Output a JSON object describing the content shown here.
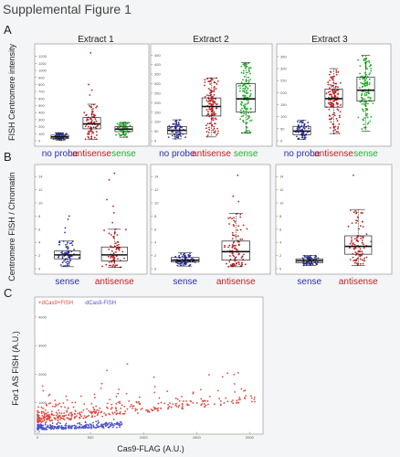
{
  "figure_title": "Supplemental Figure 1",
  "panel_labels": {
    "a": "A",
    "b": "B",
    "c": "C"
  },
  "colors": {
    "blue": "#2b2fa8",
    "red": "#c01f1f",
    "green": "#22b12c"
  },
  "chart_data": [
    {
      "type": "box",
      "id": "A1",
      "title": "Extract 1",
      "ylabel": "FISH Centromere intensity",
      "yticks": [
        "0",
        "100",
        "200",
        "300",
        "400",
        "500",
        "600",
        "700",
        "800",
        "900",
        "1000",
        "1100",
        "1200"
      ],
      "ylim": [
        0,
        1300
      ],
      "categories": [
        "no probe",
        "antisense",
        "sense"
      ],
      "category_colors": [
        "#2b2fa8",
        "#c01f1f",
        "#22b12c"
      ],
      "boxes": [
        {
          "min": 10,
          "q1": 30,
          "median": 55,
          "q3": 80,
          "max": 115,
          "n": 60
        },
        {
          "min": 20,
          "q1": 170,
          "median": 240,
          "q3": 330,
          "max": 520,
          "n": 80
        },
        {
          "min": 50,
          "q1": 130,
          "median": 165,
          "q3": 200,
          "max": 260,
          "n": 80
        }
      ],
      "outliers_high": [
        [
          1,
          650
        ],
        [
          1,
          720
        ],
        [
          1,
          1250
        ],
        [
          1,
          800
        ]
      ]
    },
    {
      "type": "box",
      "id": "A2",
      "title": "Extract 2",
      "yticks": [
        "0",
        "50",
        "100",
        "150",
        "200",
        "250",
        "300",
        "350",
        "400",
        "450"
      ],
      "ylim": [
        0,
        480
      ],
      "categories": [
        "no probe",
        "antisense",
        "sense"
      ],
      "category_colors": [
        "#2b2fa8",
        "#c01f1f",
        "#22b12c"
      ],
      "boxes": [
        {
          "min": 10,
          "q1": 35,
          "median": 55,
          "q3": 75,
          "max": 110,
          "n": 60
        },
        {
          "min": 20,
          "q1": 130,
          "median": 180,
          "q3": 225,
          "max": 330,
          "n": 140
        },
        {
          "min": 40,
          "q1": 150,
          "median": 220,
          "q3": 300,
          "max": 410,
          "n": 140
        }
      ],
      "outliers_high": []
    },
    {
      "type": "box",
      "id": "A3",
      "title": "Extract 3",
      "yticks": [
        "0",
        "50",
        "100",
        "150",
        "200",
        "250",
        "300",
        "350"
      ],
      "ylim": [
        0,
        380
      ],
      "categories": [
        "no probe",
        "antisense",
        "sense"
      ],
      "category_colors": [
        "#2b2fa8",
        "#c01f1f",
        "#22b12c"
      ],
      "boxes": [
        {
          "min": 5,
          "q1": 25,
          "median": 40,
          "q3": 60,
          "max": 85,
          "n": 60
        },
        {
          "min": 30,
          "q1": 140,
          "median": 175,
          "q3": 215,
          "max": 300,
          "n": 140
        },
        {
          "min": 40,
          "q1": 165,
          "median": 210,
          "q3": 265,
          "max": 355,
          "n": 140
        }
      ],
      "outliers_high": []
    },
    {
      "type": "box",
      "id": "B1",
      "ylabel": "Centromere FISH / Chromatin",
      "yticks": [
        "0",
        "2",
        "4",
        "6",
        "8",
        "10",
        "12",
        "14"
      ],
      "ylim": [
        0,
        15
      ],
      "categories": [
        "sense",
        "antisense"
      ],
      "category_colors": [
        "#2b2fa8",
        "#c01f1f"
      ],
      "boxes": [
        {
          "min": 0.3,
          "q1": 1.5,
          "median": 2.1,
          "q3": 2.7,
          "max": 4.2,
          "n": 70
        },
        {
          "min": 0.2,
          "q1": 1.2,
          "median": 2.1,
          "q3": 3.3,
          "max": 6.0,
          "n": 70
        }
      ],
      "outliers_high": [
        [
          0,
          5.5
        ],
        [
          0,
          6.2
        ],
        [
          0,
          7.5
        ],
        [
          0,
          8.0
        ],
        [
          1,
          7.0
        ],
        [
          1,
          8.5
        ],
        [
          1,
          10.5
        ],
        [
          1,
          13.5
        ],
        [
          1,
          14.5
        ],
        [
          1,
          9.5
        ]
      ]
    },
    {
      "type": "box",
      "id": "B2",
      "yticks": [
        "0",
        "2",
        "4",
        "6",
        "8",
        "10",
        "12",
        "14"
      ],
      "ylim": [
        0,
        15
      ],
      "categories": [
        "sense",
        "antisense"
      ],
      "category_colors": [
        "#2b2fa8",
        "#c01f1f"
      ],
      "boxes": [
        {
          "min": 0.4,
          "q1": 1.0,
          "median": 1.3,
          "q3": 1.7,
          "max": 2.4,
          "n": 80
        },
        {
          "min": 0.3,
          "q1": 1.3,
          "median": 2.6,
          "q3": 4.2,
          "max": 8.4,
          "n": 100
        }
      ],
      "outliers_high": [
        [
          1,
          10.2
        ],
        [
          1,
          11.0
        ],
        [
          1,
          14.2
        ]
      ]
    },
    {
      "type": "box",
      "id": "B3",
      "yticks": [
        "0",
        "2",
        "4",
        "6",
        "8",
        "10",
        "12",
        "14"
      ],
      "ylim": [
        0,
        15
      ],
      "categories": [
        "sense",
        "antisense"
      ],
      "category_colors": [
        "#2b2fa8",
        "#c01f1f"
      ],
      "boxes": [
        {
          "min": 0.5,
          "q1": 0.9,
          "median": 1.2,
          "q3": 1.5,
          "max": 2.0,
          "n": 70
        },
        {
          "min": 0.5,
          "q1": 2.2,
          "median": 3.4,
          "q3": 5.0,
          "max": 9.0,
          "n": 100
        }
      ],
      "outliers_high": [
        [
          1,
          14.2
        ]
      ]
    },
    {
      "type": "scatter",
      "id": "C",
      "xlabel": "Cas9-FLAG (A.U.)",
      "ylabel": "For1 AS FISH (A.U.)",
      "xticks": [
        "0",
        "500",
        "1000",
        "1500",
        "2000"
      ],
      "xlim": [
        0,
        2100
      ],
      "yticks": [
        "0",
        "1000",
        "2000",
        "3000",
        "4000"
      ],
      "ylim": [
        0,
        4600
      ],
      "legend": [
        {
          "label": "+dCas9+FISH",
          "color": "#e0483e"
        },
        {
          "label": "-dCas9-FISH",
          "color": "#4d52c9"
        }
      ],
      "series": [
        {
          "name": "+dCas9+FISH",
          "color": "#e0483e",
          "n": 420,
          "xrange": [
            0,
            2050
          ],
          "ymean": 1100
        },
        {
          "name": "-dCas9-FISH",
          "color": "#4d52c9",
          "n": 260,
          "xrange": [
            0,
            800
          ],
          "ymean": 200
        }
      ]
    }
  ]
}
